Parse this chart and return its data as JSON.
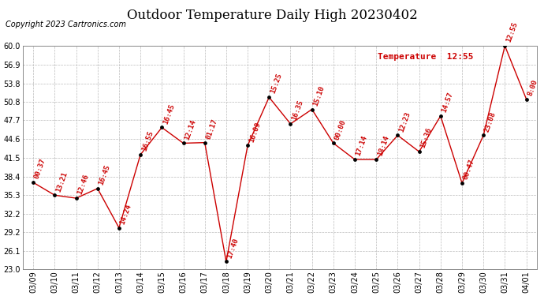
{
  "title": "Outdoor Temperature Daily High 20230402",
  "copyright": "Copyright 2023 Cartronics.com",
  "legend_label": "Temperature",
  "legend_time": "12:55",
  "line_color": "#cc0000",
  "marker_color": "#000000",
  "background_color": "#ffffff",
  "grid_color": "#bbbbbb",
  "ylim": [
    23.0,
    60.0
  ],
  "yticks": [
    23.0,
    26.1,
    29.2,
    32.2,
    35.3,
    38.4,
    41.5,
    44.6,
    47.7,
    50.8,
    53.8,
    56.9,
    60.0
  ],
  "dates": [
    "03/09",
    "03/10",
    "03/11",
    "03/12",
    "03/13",
    "03/14",
    "03/15",
    "03/16",
    "03/17",
    "03/18",
    "03/19",
    "03/20",
    "03/21",
    "03/22",
    "03/23",
    "03/24",
    "03/25",
    "03/26",
    "03/27",
    "03/28",
    "03/29",
    "03/30",
    "03/31",
    "04/01"
  ],
  "values": [
    37.4,
    35.3,
    34.8,
    36.4,
    29.9,
    42.0,
    46.5,
    43.9,
    44.0,
    24.3,
    43.5,
    51.5,
    47.1,
    49.5,
    43.9,
    41.2,
    41.2,
    45.2,
    42.5,
    48.4,
    37.3,
    45.2,
    60.0,
    51.2
  ],
  "time_labels": [
    "00:37",
    "13:21",
    "12:46",
    "16:45",
    "14:24",
    "16:55",
    "16:45",
    "12:14",
    "01:17",
    "17:40",
    "16:09",
    "15:25",
    "16:35",
    "15:10",
    "00:00",
    "17:14",
    "18:14",
    "12:23",
    "15:36",
    "14:57",
    "00:47",
    "23:08",
    "12:55",
    "8:00"
  ],
  "title_fontsize": 12,
  "label_fontsize": 6.5,
  "tick_fontsize": 7,
  "copyright_fontsize": 7
}
